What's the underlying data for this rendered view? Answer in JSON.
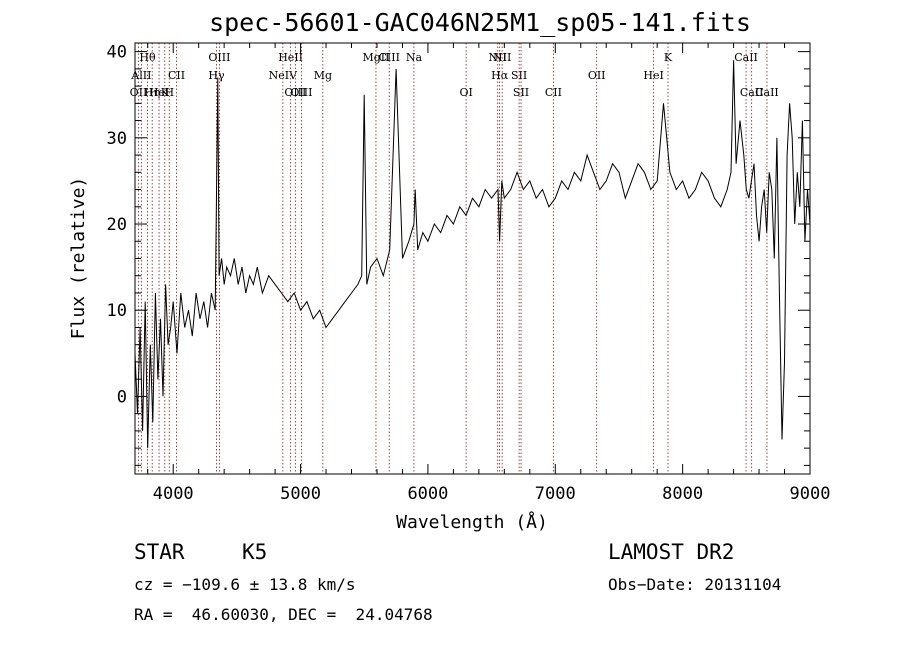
{
  "chart_data": {
    "type": "line",
    "title": "spec-56601-GAC046N25M1_sp05-141.fits",
    "xlabel": "Wavelength (Å)",
    "ylabel": "Flux (relative)",
    "xlim": [
      3700,
      9000
    ],
    "ylim": [
      -9,
      41
    ],
    "xticks": [
      4000,
      5000,
      6000,
      7000,
      8000,
      9000
    ],
    "yticks": [
      0,
      10,
      20,
      30,
      40
    ],
    "grid": false,
    "series": [
      {
        "x": [
          3700,
          3720,
          3740,
          3760,
          3780,
          3800,
          3820,
          3840,
          3860,
          3880,
          3900,
          3920,
          3940,
          3960,
          3980,
          4000,
          4030,
          4060,
          4090,
          4120,
          4150,
          4180,
          4210,
          4240,
          4270,
          4300,
          4330,
          4350,
          4360,
          4380,
          4400,
          4420,
          4450,
          4480,
          4510,
          4540,
          4570,
          4600,
          4630,
          4660,
          4700,
          4750,
          4800,
          4850,
          4900,
          4950,
          5000,
          5050,
          5100,
          5150,
          5200,
          5250,
          5300,
          5350,
          5400,
          5450,
          5480,
          5500,
          5520,
          5550,
          5600,
          5650,
          5700,
          5750,
          5800,
          5850,
          5890,
          5900,
          5920,
          5960,
          6000,
          6050,
          6100,
          6150,
          6200,
          6250,
          6300,
          6350,
          6400,
          6450,
          6500,
          6550,
          6563,
          6580,
          6600,
          6650,
          6700,
          6750,
          6800,
          6850,
          6900,
          6950,
          7000,
          7050,
          7100,
          7150,
          7200,
          7250,
          7300,
          7350,
          7400,
          7450,
          7500,
          7550,
          7600,
          7650,
          7700,
          7750,
          7800,
          7850,
          7900,
          7950,
          8000,
          8050,
          8100,
          8150,
          8200,
          8250,
          8300,
          8350,
          8380,
          8400,
          8420,
          8450,
          8480,
          8500,
          8520,
          8540,
          8560,
          8580,
          8600,
          8620,
          8640,
          8660,
          8680,
          8700,
          8720,
          8740,
          8760,
          8780,
          8800,
          8820,
          8840,
          8860,
          8880,
          8900,
          8920,
          8940,
          8960,
          8980,
          9000
        ],
        "values": [
          5,
          -2,
          8,
          -4,
          11,
          -6,
          6,
          -3,
          12,
          2,
          9,
          0,
          13,
          6,
          8,
          11,
          5,
          12,
          8,
          10,
          7,
          12,
          9,
          11,
          8,
          12,
          10,
          37,
          14,
          16,
          13,
          15,
          14,
          16,
          13,
          15,
          12,
          14,
          13,
          15,
          12,
          14,
          13,
          12,
          11,
          12,
          10,
          11,
          9,
          10,
          8,
          9,
          10,
          11,
          12,
          13,
          14,
          35,
          13,
          15,
          16,
          14,
          17,
          38,
          16,
          18,
          20,
          24,
          17,
          19,
          18,
          20,
          19,
          21,
          20,
          22,
          21,
          23,
          22,
          24,
          23,
          24,
          18,
          25,
          23,
          24,
          26,
          24,
          25,
          23,
          24,
          22,
          23,
          25,
          24,
          26,
          25,
          28,
          26,
          24,
          25,
          27,
          26,
          23,
          25,
          27,
          26,
          24,
          25,
          34,
          26,
          24,
          25,
          23,
          24,
          26,
          25,
          23,
          22,
          24,
          26,
          39,
          27,
          32,
          28,
          24,
          23,
          25,
          27,
          21,
          18,
          22,
          24,
          19,
          26,
          24,
          16,
          30,
          12,
          -5,
          4,
          28,
          34,
          30,
          20,
          26,
          22,
          32,
          18,
          24,
          20
        ]
      }
    ],
    "lines": [
      {
        "w": 3727,
        "name": "OII",
        "row": 3
      },
      {
        "w": 3750,
        "name": "AlII",
        "row": 2
      },
      {
        "w": 3798,
        "name": "Hθ",
        "row": 1
      },
      {
        "w": 3835,
        "name": "Hη",
        "row": 3
      },
      {
        "w": 3889,
        "name": "HeI",
        "row": 3
      },
      {
        "w": 3934,
        "name": "K",
        "row": 3
      },
      {
        "w": 3969,
        "name": "H",
        "row": 3
      },
      {
        "w": 4026,
        "name": "CII",
        "row": 2
      },
      {
        "w": 4340,
        "name": "Hγ",
        "row": 2
      },
      {
        "w": 4363,
        "name": "OIII",
        "row": 1
      },
      {
        "w": 4861,
        "name": "NeIV",
        "row": 2
      },
      {
        "w": 4922,
        "name": "HeII",
        "row": 1
      },
      {
        "w": 4959,
        "name": "OIII",
        "row": 3
      },
      {
        "w": 5007,
        "name": "OIII",
        "row": 3
      },
      {
        "w": 5175,
        "name": "Mg",
        "row": 2
      },
      {
        "w": 5592,
        "name": "MgII",
        "row": 1
      },
      {
        "w": 5696,
        "name": "CIII",
        "row": 1
      },
      {
        "w": 5890,
        "name": "Na",
        "row": 1
      },
      {
        "w": 6300,
        "name": "OI",
        "row": 3
      },
      {
        "w": 6548,
        "name": "NII",
        "row": 1
      },
      {
        "w": 6563,
        "name": "Hα",
        "row": 2
      },
      {
        "w": 6583,
        "name": "NII",
        "row": 1
      },
      {
        "w": 6716,
        "name": "SII",
        "row": 2
      },
      {
        "w": 6731,
        "name": "SII",
        "row": 3
      },
      {
        "w": 6985,
        "name": "CII",
        "row": 3
      },
      {
        "w": 7325,
        "name": "OII",
        "row": 2
      },
      {
        "w": 7772,
        "name": "HeI",
        "row": 2
      },
      {
        "w": 7885,
        "name": "K",
        "row": 1
      },
      {
        "w": 8498,
        "name": "CaII",
        "row": 1
      },
      {
        "w": 8542,
        "name": "CaII",
        "row": 3
      },
      {
        "w": 8662,
        "name": "CaII",
        "row": 3
      }
    ]
  },
  "info": {
    "class": "STAR",
    "subclass": "K5",
    "survey": "LAMOST DR2",
    "cz": "cz = −109.6 ± 13.8 km/s",
    "obs_date": "Obs−Date: 20131104",
    "radec": "RA =  46.60030, DEC =  24.04768"
  }
}
